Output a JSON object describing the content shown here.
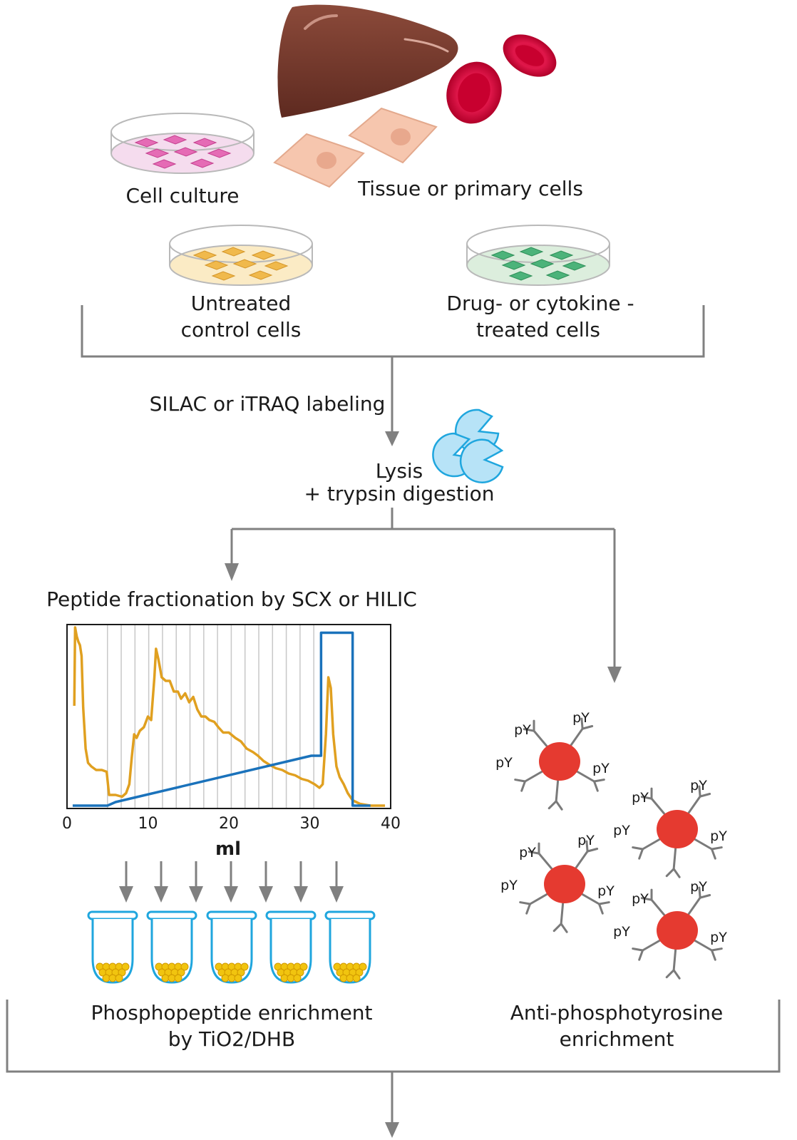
{
  "labels": {
    "cell_culture": "Cell culture",
    "tissue": "Tissue or primary cells",
    "untreated_1": "Untreated",
    "untreated_2": "control cells",
    "treated_1": "Drug- or cytokine -",
    "treated_2": "treated  cells",
    "labeling": "SILAC or iTRAQ labeling",
    "lysis_1": "Lysis",
    "lysis_2": "+ trypsin digestion",
    "fractionation": "Peptide fractionation by SCX or HILIC",
    "phospho_1": "Phosphopeptide enrichment",
    "phospho_2": "by TiO2/DHB",
    "antipy_1": "Anti-phosphotyrosine",
    "antipy_2": "enrichment",
    "py": "pY"
  },
  "colors": {
    "flow_line": "#808080",
    "liver": "#7a3b2e",
    "rbc": "#e0174a",
    "primary_cell": "#f6c6ae",
    "dish_pink": "#f5dcee",
    "dish_yellow": "#fbebc5",
    "dish_green": "#dceedd",
    "enzyme": "#b7e3f7",
    "chart_orange": "#e0a020",
    "chart_blue": "#1a72bb",
    "bead": "#f1c40f",
    "antigen_bead": "#e53a30"
  },
  "chart_data": {
    "type": "line",
    "xlabel": "ml",
    "xlim": [
      0,
      40
    ],
    "xticks": [
      0,
      10,
      20,
      30,
      40
    ],
    "fraction_lines_x": [
      5,
      6.7,
      8.4,
      10.1,
      11.8,
      13.5,
      15.2,
      16.9,
      18.6,
      20.3,
      22,
      23.7,
      25.4,
      27.1,
      28.8,
      30.5
    ],
    "series": [
      {
        "color": "#e0a020",
        "values": [
          [
            0.9,
            0.56
          ],
          [
            1.0,
            1.0
          ],
          [
            1.2,
            0.95
          ],
          [
            1.4,
            0.92
          ],
          [
            1.6,
            0.9
          ],
          [
            1.8,
            0.84
          ],
          [
            2.0,
            0.55
          ],
          [
            2.3,
            0.32
          ],
          [
            2.6,
            0.24
          ],
          [
            3.0,
            0.22
          ],
          [
            3.6,
            0.2
          ],
          [
            4.3,
            0.2
          ],
          [
            4.9,
            0.19
          ],
          [
            5.2,
            0.06
          ],
          [
            6.0,
            0.06
          ],
          [
            6.8,
            0.05
          ],
          [
            7.3,
            0.07
          ],
          [
            7.7,
            0.12
          ],
          [
            8.0,
            0.27
          ],
          [
            8.3,
            0.4
          ],
          [
            8.6,
            0.38
          ],
          [
            9.0,
            0.42
          ],
          [
            9.5,
            0.44
          ],
          [
            10.0,
            0.5
          ],
          [
            10.4,
            0.48
          ],
          [
            10.8,
            0.72
          ],
          [
            11.0,
            0.88
          ],
          [
            11.3,
            0.82
          ],
          [
            11.7,
            0.72
          ],
          [
            12.2,
            0.7
          ],
          [
            12.7,
            0.7
          ],
          [
            13.2,
            0.64
          ],
          [
            13.7,
            0.64
          ],
          [
            14.1,
            0.6
          ],
          [
            14.6,
            0.63
          ],
          [
            15.1,
            0.58
          ],
          [
            15.6,
            0.61
          ],
          [
            16.1,
            0.54
          ],
          [
            16.6,
            0.5
          ],
          [
            17.1,
            0.5
          ],
          [
            17.6,
            0.48
          ],
          [
            18.2,
            0.47
          ],
          [
            18.7,
            0.44
          ],
          [
            19.3,
            0.41
          ],
          [
            20.0,
            0.41
          ],
          [
            20.8,
            0.38
          ],
          [
            21.5,
            0.36
          ],
          [
            22.2,
            0.32
          ],
          [
            23.0,
            0.3
          ],
          [
            23.6,
            0.28
          ],
          [
            24.3,
            0.25
          ],
          [
            25.0,
            0.23
          ],
          [
            25.8,
            0.21
          ],
          [
            26.6,
            0.2
          ],
          [
            27.4,
            0.18
          ],
          [
            28.2,
            0.17
          ],
          [
            29.0,
            0.15
          ],
          [
            29.8,
            0.14
          ],
          [
            30.6,
            0.12
          ],
          [
            31.2,
            0.1
          ],
          [
            31.6,
            0.12
          ],
          [
            32.0,
            0.4
          ],
          [
            32.3,
            0.72
          ],
          [
            32.6,
            0.66
          ],
          [
            32.9,
            0.4
          ],
          [
            33.3,
            0.22
          ],
          [
            33.7,
            0.16
          ],
          [
            34.2,
            0.12
          ],
          [
            34.7,
            0.07
          ],
          [
            35.3,
            0.03
          ],
          [
            36.2,
            0.01
          ],
          [
            37.5,
            0.0
          ],
          [
            39.3,
            0.0
          ]
        ]
      },
      {
        "color": "#1a72bb",
        "values": [
          [
            0.7,
            0.0
          ],
          [
            5.0,
            0.0
          ],
          [
            6.0,
            0.02
          ],
          [
            30.2,
            0.28
          ],
          [
            31.4,
            0.28
          ],
          [
            31.4,
            0.97
          ],
          [
            35.3,
            0.97
          ],
          [
            35.3,
            0.0
          ],
          [
            37.5,
            0.0
          ]
        ]
      }
    ]
  }
}
